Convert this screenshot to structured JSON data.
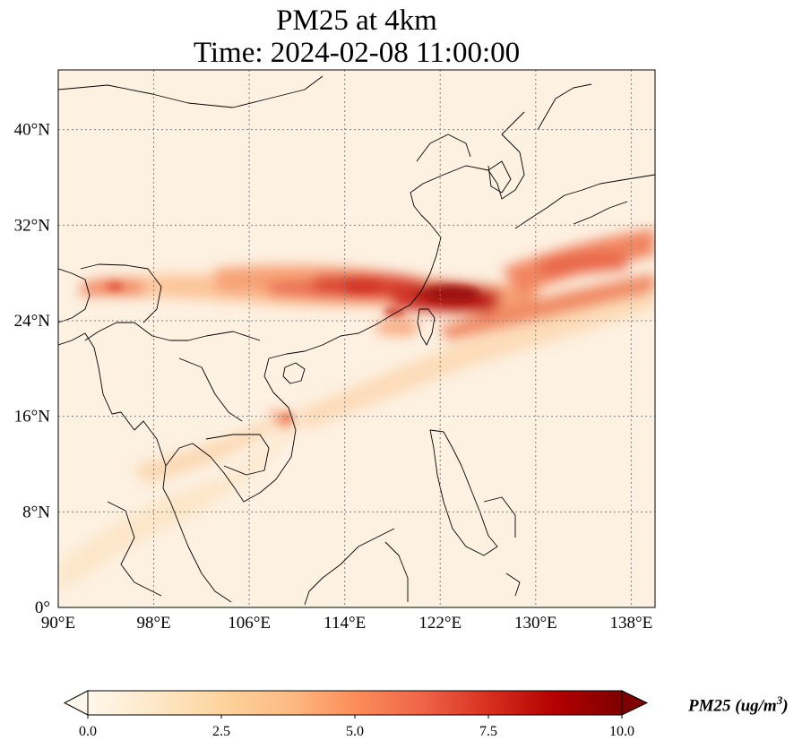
{
  "title": {
    "line1": "PM25 at 4km",
    "line2": "Time: 2024-02-08 11:00:00"
  },
  "map": {
    "variable": "PM25",
    "level": "4km",
    "time": "2024-02-08 11:00:00",
    "lon_range": [
      90,
      140
    ],
    "lat_range": [
      0,
      45
    ],
    "grid_lines": "dotted",
    "x_ticks": [
      {
        "value": 90,
        "label": "90°E"
      },
      {
        "value": 98,
        "label": "98°E"
      },
      {
        "value": 106,
        "label": "106°E"
      },
      {
        "value": 114,
        "label": "114°E"
      },
      {
        "value": 122,
        "label": "122°E"
      },
      {
        "value": 130,
        "label": "130°E"
      },
      {
        "value": 138,
        "label": "138°E"
      }
    ],
    "y_ticks": [
      {
        "value": 0,
        "label": "0°"
      },
      {
        "value": 8,
        "label": "8°N"
      },
      {
        "value": 16,
        "label": "16°N"
      },
      {
        "value": 24,
        "label": "24°N"
      },
      {
        "value": 32,
        "label": "32°N"
      },
      {
        "value": 40,
        "label": "40°N"
      }
    ]
  },
  "colorbar": {
    "colormap": "OrRd",
    "range": [
      0.0,
      10.0
    ],
    "extend": "both",
    "ticks": [
      "0.0",
      "2.5",
      "5.0",
      "7.5",
      "10.0"
    ],
    "label_text": "PM25 (ug/m",
    "label_sup": "3",
    "label_close": ")",
    "colors": [
      "#fff7ec",
      "#fee8c8",
      "#fdd49e",
      "#fdbb84",
      "#fc8d59",
      "#ef6548",
      "#d7301f",
      "#b30000",
      "#7f0000"
    ]
  }
}
